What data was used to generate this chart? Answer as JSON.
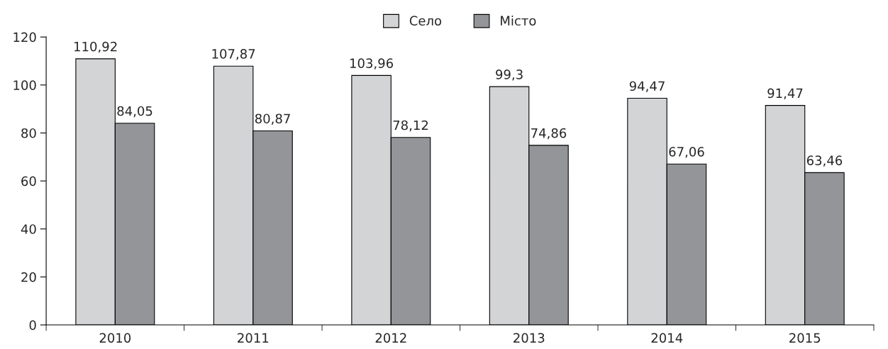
{
  "chart_data": {
    "type": "bar",
    "categories": [
      "2010",
      "2011",
      "2012",
      "2013",
      "2014",
      "2015"
    ],
    "series": [
      {
        "name": "Село",
        "color": "#d3d4d6",
        "values": [
          110.92,
          107.87,
          103.96,
          99.3,
          94.47,
          91.47
        ],
        "value_labels": [
          "110,92",
          "107,87",
          "103,96",
          "99,3",
          "94,47",
          "91,47"
        ]
      },
      {
        "name": "Місто",
        "color": "#939598",
        "values": [
          84.05,
          80.87,
          78.12,
          74.86,
          67.06,
          63.46
        ],
        "value_labels": [
          "84,05",
          "80,87",
          "78,12",
          "74,86",
          "67,06",
          "63,46"
        ]
      }
    ],
    "ylim": [
      0,
      120
    ],
    "yticks": [
      0,
      20,
      40,
      60,
      80,
      100,
      120
    ],
    "grid": false,
    "legend": "top"
  }
}
